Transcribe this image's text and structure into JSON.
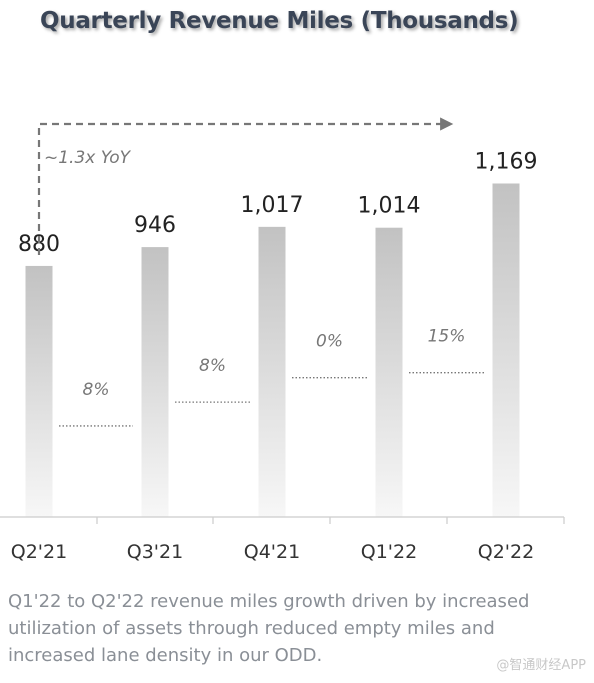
{
  "chart_data": {
    "type": "bar",
    "title": "Quarterly Revenue Miles (Thousands)",
    "categories": [
      "Q2'21",
      "Q3'21",
      "Q4'21",
      "Q1'22",
      "Q2'22"
    ],
    "values": [
      880,
      946,
      1017,
      1014,
      1169
    ],
    "data_labels": [
      "880",
      "946",
      "1,017",
      "1,014",
      "1,169"
    ],
    "growth_labels": [
      "8%",
      "8%",
      "0%",
      "15%"
    ],
    "annotation": "~1.3x YoY",
    "xlabel": "",
    "ylabel": "",
    "grid": false,
    "legend": "none"
  },
  "caption": "Q1'22 to Q2'22 revenue miles growth driven by increased utilization of assets through reduced empty miles and increased lane density in our ODD.",
  "watermark": "@智通财经APP",
  "colors": {
    "title": "#3a4557",
    "bar_top": "#c2c2c2",
    "bar_bottom": "#f7f7f7",
    "text": "#8a8f96",
    "axis": "#cccccc"
  }
}
